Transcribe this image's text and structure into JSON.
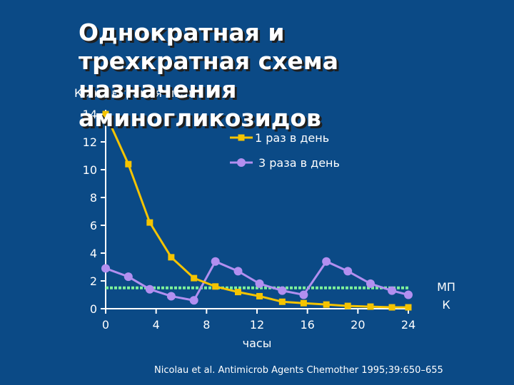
{
  "title": "Однократная и\nтрехкратная схема\nназначения\nаминогликозидов",
  "citation": "Nicolau et al. Antimicrob Agents Chemother 1995;39:650–655",
  "chart_data": {
    "type": "line",
    "ylabel": "Концентрация мг/л",
    "xlabel": "часы",
    "xlim": [
      0,
      24
    ],
    "ylim": [
      0,
      14
    ],
    "xticks": [
      0,
      4,
      8,
      12,
      16,
      20,
      24
    ],
    "yticks": [
      0,
      2,
      4,
      6,
      8,
      10,
      12,
      14
    ],
    "grid": false,
    "legend_position": "top-right",
    "series": [
      {
        "name": "1 раз в день",
        "color": "#f5c400",
        "marker": "square",
        "x": [
          0,
          1.8,
          3.5,
          5.2,
          7,
          8.7,
          10.5,
          12.2,
          14,
          15.7,
          17.5,
          19.2,
          21,
          22.7,
          24
        ],
        "y": [
          14,
          10.4,
          6.2,
          3.7,
          2.2,
          1.6,
          1.2,
          0.9,
          0.5,
          0.4,
          0.3,
          0.2,
          0.15,
          0.1,
          0.1
        ]
      },
      {
        "name": "3 раза в день",
        "color": "#b28ff0",
        "marker": "circle",
        "x": [
          0,
          1.8,
          3.5,
          5.2,
          7,
          8.7,
          10.5,
          12.2,
          14,
          15.7,
          17.5,
          19.2,
          21,
          22.7,
          24
        ],
        "y": [
          2.9,
          2.3,
          1.4,
          0.9,
          0.6,
          3.4,
          2.7,
          1.8,
          1.3,
          1.0,
          3.4,
          2.7,
          1.8,
          1.3,
          1.0
        ]
      }
    ],
    "reference_line": {
      "label_line1": "МП",
      "label_line2": "К",
      "y": 1.5,
      "color": "#7cf29a"
    }
  }
}
